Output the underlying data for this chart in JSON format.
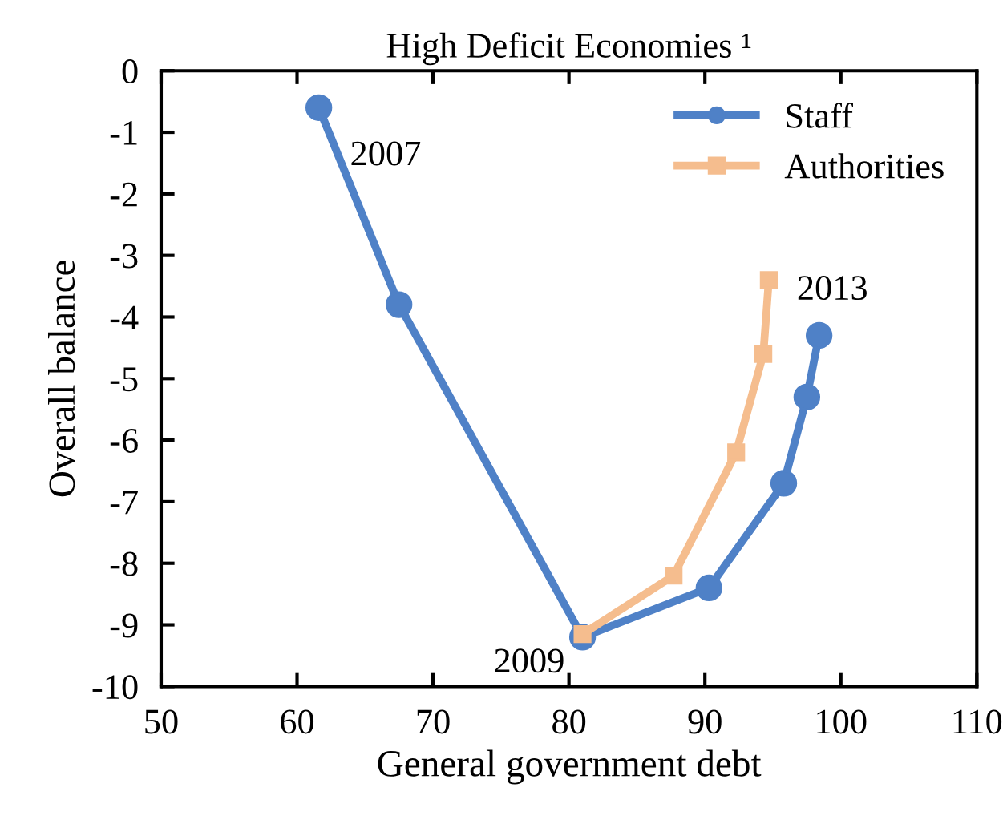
{
  "chart_data": {
    "type": "line",
    "title": "High Deficit Economies ¹",
    "xlabel": "General government debt",
    "ylabel": "Overall balance",
    "xlim": [
      50,
      110
    ],
    "xticks": [
      50,
      60,
      70,
      80,
      90,
      100,
      110
    ],
    "ylim": [
      -10,
      0
    ],
    "yticks": [
      -10,
      -9,
      -8,
      -7,
      -6,
      -5,
      -4,
      -3,
      -2,
      -1,
      0
    ],
    "grid": false,
    "legend": "top right",
    "series": [
      {
        "name": "Staff",
        "color": "#4f81c7",
        "marker": "circle",
        "x": [
          61.6,
          67.5,
          81.0,
          90.3,
          95.8,
          97.5,
          98.4
        ],
        "values": [
          -0.6,
          -3.8,
          -9.2,
          -8.4,
          -6.7,
          -5.3,
          -4.3
        ]
      },
      {
        "name": "Authorities",
        "color": "#f5bd8e",
        "marker": "square",
        "x": [
          81.0,
          87.7,
          92.3,
          94.3,
          94.7
        ],
        "values": [
          -9.15,
          -8.2,
          -6.2,
          -4.6,
          -3.4
        ]
      }
    ],
    "annotations": [
      {
        "text": "2007",
        "x": 61.6,
        "y": -0.6
      },
      {
        "text": "2009",
        "x": 81.0,
        "y": -9.2
      },
      {
        "text": "2013",
        "x": 98.4,
        "y": -4.3
      }
    ]
  }
}
